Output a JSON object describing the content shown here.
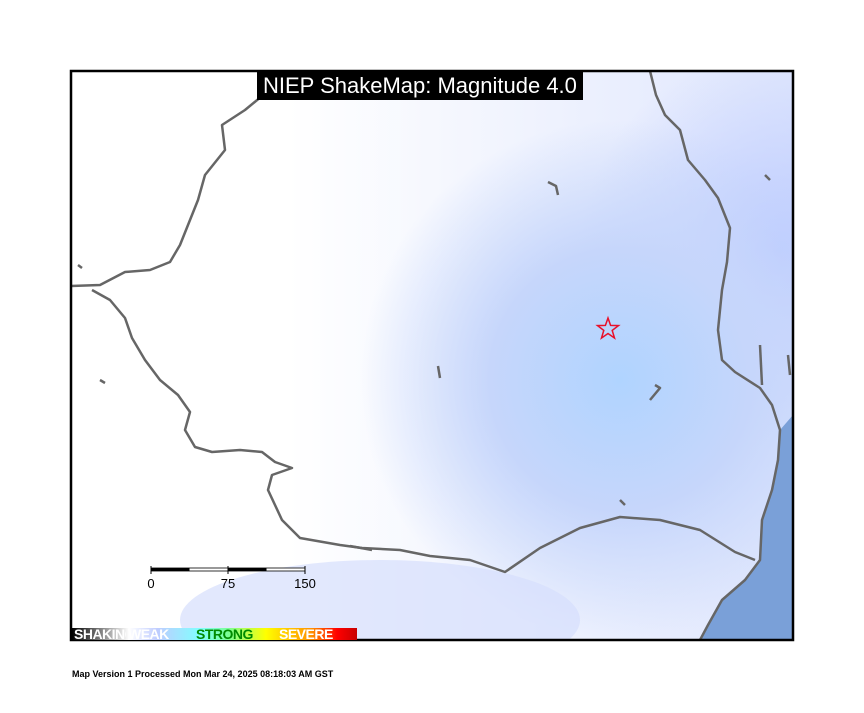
{
  "title": "NIEP ShakeMap: Magnitude 4.0",
  "scale_bar": {
    "labels": [
      "0",
      "75",
      "150"
    ]
  },
  "legend": {
    "labels": [
      "SHAKING",
      "WEAK",
      "STRONG",
      "SEVERE"
    ]
  },
  "footer": "Map Version 1 Processed Mon Mar 24, 2025 08:18:03 AM GST",
  "epicenter": {
    "icon": "star-icon",
    "color": "#e8102a"
  },
  "colors": {
    "border": "#666666",
    "sea": "#7aa0d8",
    "frame": "#000000",
    "light_shaking": "#b0d4ff"
  }
}
